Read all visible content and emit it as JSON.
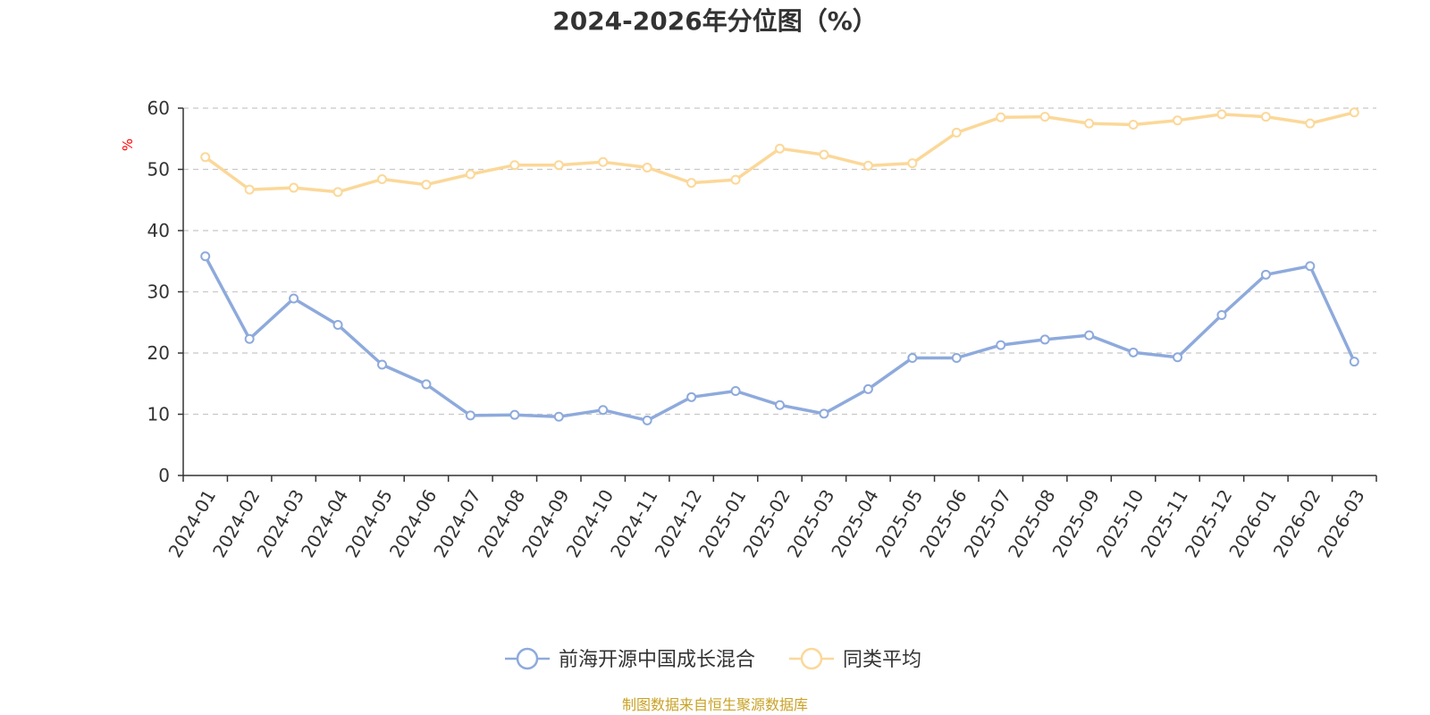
{
  "chart_data": {
    "type": "line",
    "title": "2024-2026年分位图（%）",
    "ylabel": "%",
    "xlabel": "",
    "ylim": [
      0,
      60
    ],
    "yticks": [
      0,
      10,
      20,
      30,
      40,
      50,
      60
    ],
    "grid": true,
    "legend_position": "bottom-center",
    "categories": [
      "2024-01",
      "2024-02",
      "2024-03",
      "2024-04",
      "2024-05",
      "2024-06",
      "2024-07",
      "2024-08",
      "2024-09",
      "2024-10",
      "2024-11",
      "2024-12",
      "2025-01",
      "2025-02",
      "2025-03",
      "2025-04",
      "2025-05",
      "2025-06",
      "2025-07",
      "2025-08",
      "2025-09",
      "2025-10",
      "2025-11",
      "2025-12",
      "2026-01",
      "2026-02",
      "2026-03"
    ],
    "series": [
      {
        "name": "前海开源中国成长混合",
        "color": "#8eaadc",
        "values": [
          35.8,
          22.3,
          28.9,
          24.6,
          18.1,
          14.9,
          9.8,
          9.9,
          9.6,
          10.7,
          9.0,
          12.8,
          13.8,
          11.5,
          10.1,
          14.1,
          19.2,
          19.2,
          21.3,
          22.2,
          22.9,
          20.1,
          19.3,
          26.2,
          32.8,
          34.2,
          18.6
        ]
      },
      {
        "name": "同类平均",
        "color": "#fbd899",
        "values": [
          52.0,
          46.7,
          47.0,
          46.3,
          48.4,
          47.5,
          49.2,
          50.7,
          50.7,
          51.2,
          50.3,
          47.8,
          48.3,
          53.4,
          52.4,
          50.6,
          51.0,
          56.0,
          58.5,
          58.6,
          57.5,
          57.3,
          58.0,
          59.0,
          58.6,
          57.5,
          59.3
        ]
      }
    ],
    "source": "制图数据来自恒生聚源数据库",
    "source_color": "#c9a227",
    "unit_color": "#ff0000"
  }
}
